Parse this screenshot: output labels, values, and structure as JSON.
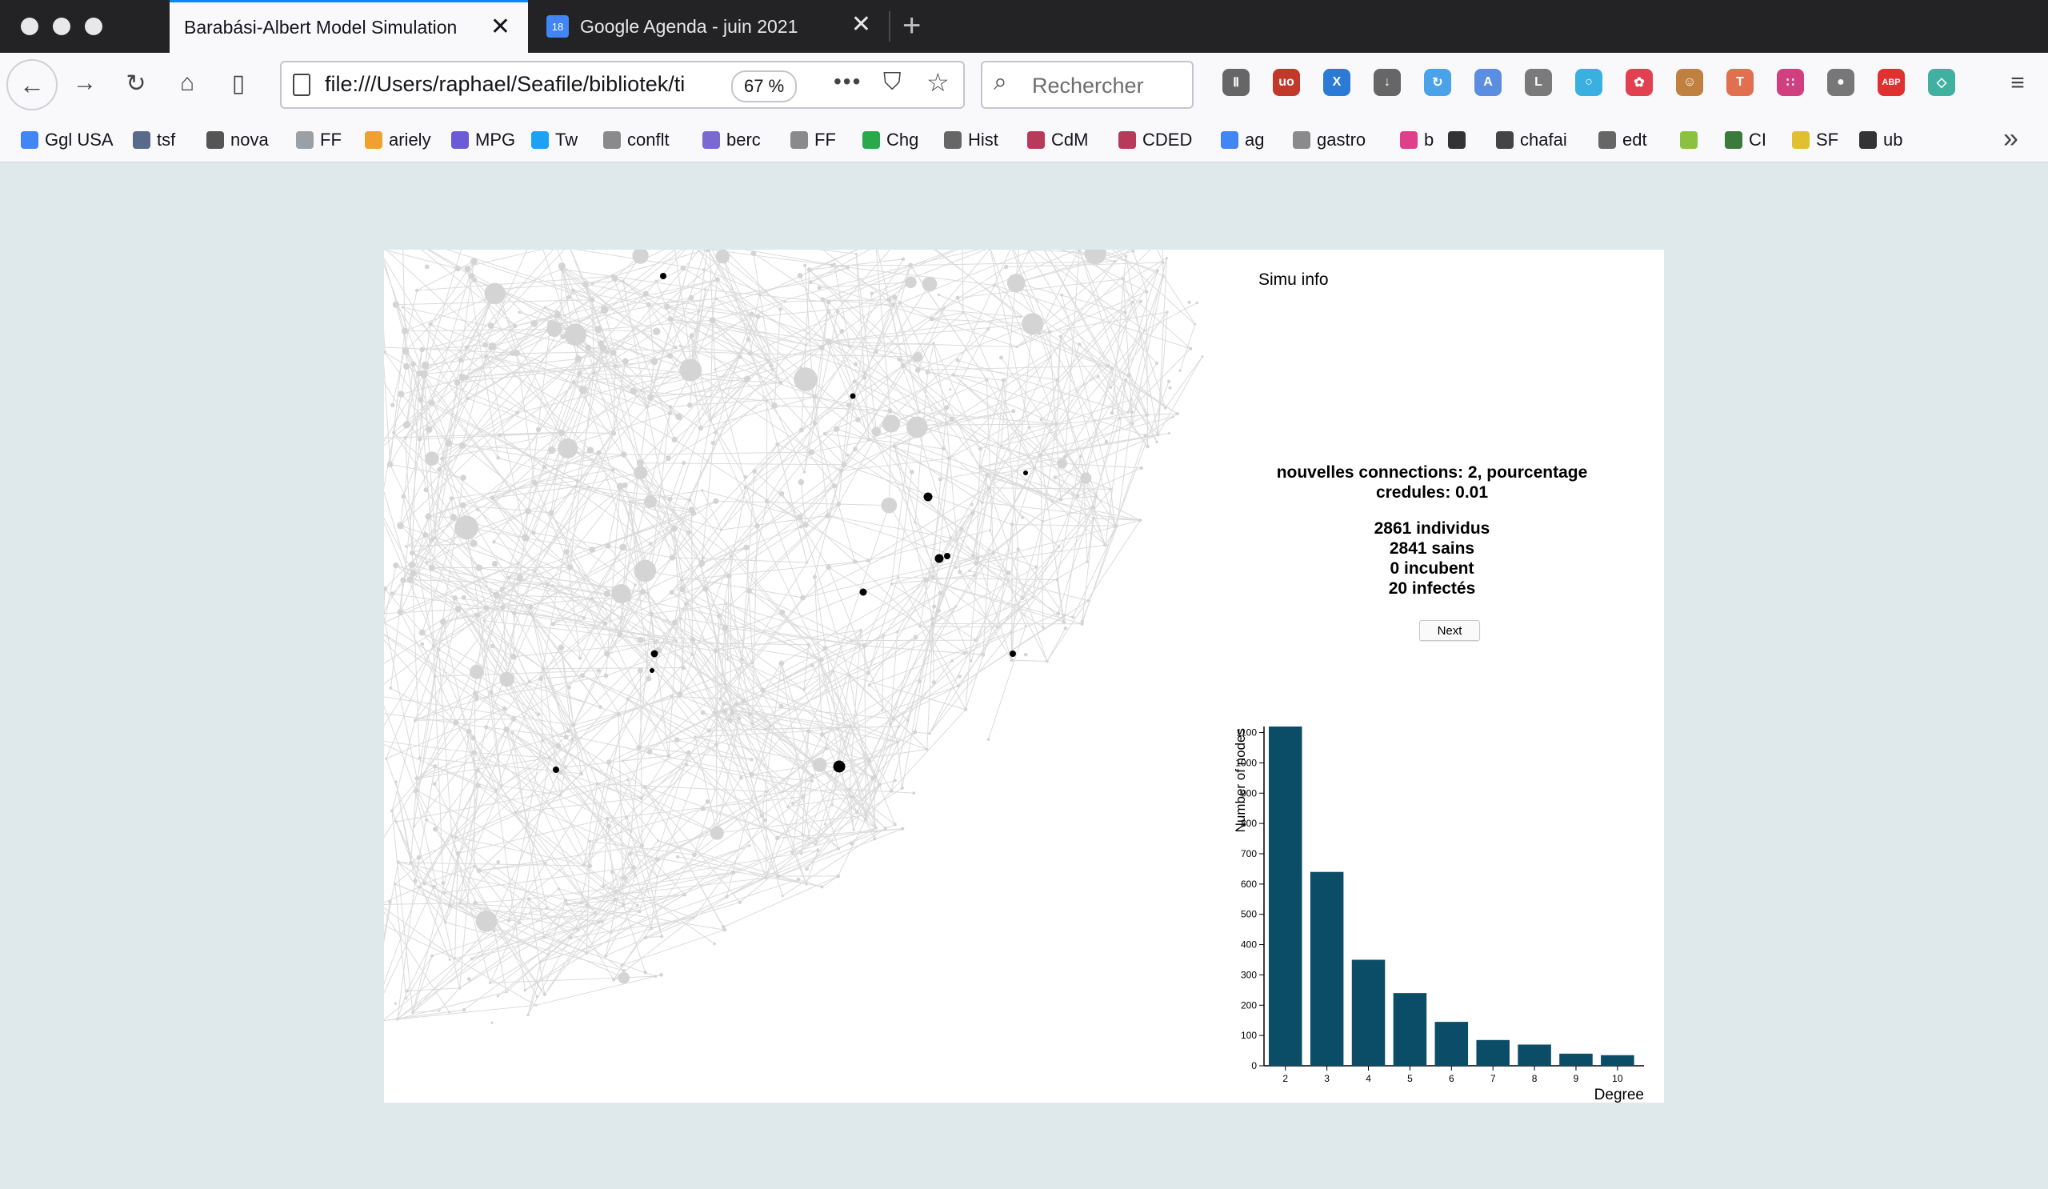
{
  "browser": {
    "tabs": [
      {
        "title": "Barabási-Albert Model Simulation",
        "active": true
      },
      {
        "title": "Google Agenda - juin 2021",
        "active": false,
        "favicon_text": "18"
      }
    ],
    "url": "file:///Users/raphael/Seafile/bibliotek/ti",
    "zoom": "67 %",
    "search_placeholder": "Rechercher",
    "bookmarks": [
      {
        "label": "Ggl USA",
        "icon": "google-icon",
        "color": "#4285f4"
      },
      {
        "label": "tsf",
        "icon": "tsf-icon",
        "color": "#5a6a8a"
      },
      {
        "label": "nova",
        "icon": "nova-icon",
        "color": "#555555"
      },
      {
        "label": "FF",
        "icon": "ff-icon",
        "color": "#9aa0a6"
      },
      {
        "label": "ariely",
        "icon": "lightbulb-icon",
        "color": "#f0a030"
      },
      {
        "label": "MPG",
        "icon": "mpg-icon",
        "color": "#6b5bd6"
      },
      {
        "label": "Tw",
        "icon": "twitter-icon",
        "color": "#1da1f2"
      },
      {
        "label": "conflt",
        "icon": "folder-icon",
        "color": "#8a8a8a"
      },
      {
        "label": "berc",
        "icon": "berc-icon",
        "color": "#7a6ad0"
      },
      {
        "label": "FF",
        "icon": "folder-icon",
        "color": "#8a8a8a"
      },
      {
        "label": "Chg",
        "icon": "chg-icon",
        "color": "#2aa84a"
      },
      {
        "label": "Hist",
        "icon": "globe-icon",
        "color": "#666666"
      },
      {
        "label": "CdM",
        "icon": "cdm-icon",
        "color": "#b83a5a"
      },
      {
        "label": "CDED",
        "icon": "cded-icon",
        "color": "#b83a5a"
      },
      {
        "label": "ag",
        "icon": "calendar-icon",
        "color": "#4285f4"
      },
      {
        "label": "gastro",
        "icon": "folder-icon",
        "color": "#8a8a8a"
      },
      {
        "label": "b",
        "icon": "arrow-icon",
        "color": "#e0408a"
      },
      {
        "label": "",
        "icon": "m-icon",
        "color": "#333333"
      },
      {
        "label": "chafai",
        "icon": "chafai-icon",
        "color": "#444444"
      },
      {
        "label": "edt",
        "icon": "globe-icon",
        "color": "#666666"
      },
      {
        "label": "",
        "icon": "smiley-icon",
        "color": "#8cc040"
      },
      {
        "label": "CI",
        "icon": "earth-icon",
        "color": "#3a7a3a"
      },
      {
        "label": "SF",
        "icon": "sf-icon",
        "color": "#e0c030"
      },
      {
        "label": "ub",
        "icon": "symfony-icon",
        "color": "#333333"
      }
    ],
    "toolbar_icons": [
      {
        "name": "library-icon",
        "color": "#666666",
        "glyph": "Ⅱ"
      },
      {
        "name": "ublock-icon",
        "color": "#c0392b",
        "glyph": "uo"
      },
      {
        "name": "x-extension-icon",
        "color": "#2b7bd6",
        "glyph": "X"
      },
      {
        "name": "download-icon",
        "color": "#666666",
        "glyph": "↓"
      },
      {
        "name": "sync-icon",
        "color": "#4aa3e8",
        "glyph": "↻"
      },
      {
        "name": "translate-icon",
        "color": "#5b8ee0",
        "glyph": "A"
      },
      {
        "name": "l-icon",
        "color": "#7a7a7a",
        "glyph": "L"
      },
      {
        "name": "circle-extension-icon",
        "color": "#3ab0e0",
        "glyph": "○"
      },
      {
        "name": "yelp-icon",
        "color": "#e04050",
        "glyph": "✿"
      },
      {
        "name": "monkey-icon",
        "color": "#c08040",
        "glyph": "☺"
      },
      {
        "name": "t-icon",
        "color": "#e07050",
        "glyph": "T"
      },
      {
        "name": "dots-grid-icon",
        "color": "#d04080",
        "glyph": "∷"
      },
      {
        "name": "balls-icon",
        "color": "#777777",
        "glyph": "●"
      },
      {
        "name": "abp-icon",
        "color": "#e03030",
        "glyph": "ABP"
      },
      {
        "name": "diamond-icon",
        "color": "#40b0a0",
        "glyph": "◇"
      }
    ]
  },
  "simulation": {
    "title": "Simu info",
    "params_line1": "nouvelles connections: 2, pourcentage",
    "params_line2": "credules: 0.01",
    "individus": "2861 individus",
    "sains": "2841 sains",
    "incubent": "0 incubent",
    "infectes": "20 infectés",
    "next_label": "Next"
  },
  "chart_data": {
    "type": "bar",
    "categories": [
      "2",
      "3",
      "4",
      "5",
      "6",
      "7",
      "8",
      "9",
      "10"
    ],
    "values": [
      1120,
      640,
      350,
      240,
      145,
      85,
      70,
      40,
      35
    ],
    "xlabel": "Degree",
    "ylabel": "Number of nodes",
    "ylim": [
      0,
      1120
    ],
    "yticks": [
      0,
      100,
      200,
      300,
      400,
      500,
      600,
      700,
      800,
      900,
      1000,
      1100
    ],
    "bar_color": "#0b4d66"
  }
}
